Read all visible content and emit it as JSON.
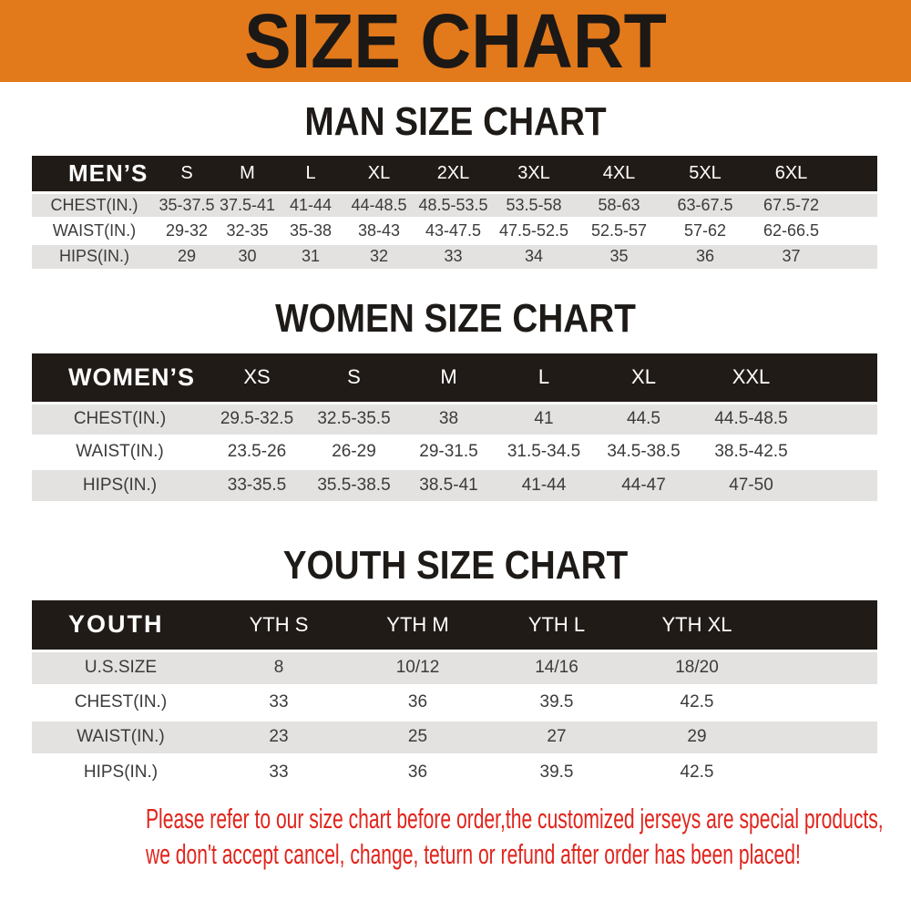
{
  "banner": {
    "title": "SIZE CHART"
  },
  "sections": [
    {
      "heading": "MAN SIZE CHART",
      "table": {
        "header_label": "MEN’S",
        "sizes": [
          "S",
          "M",
          "L",
          "XL",
          "2XL",
          "3XL",
          "4XL",
          "5XL",
          "6XL"
        ],
        "rows": [
          {
            "label": "CHEST(IN.)",
            "values": [
              "35-37.5",
              "37.5-41",
              "41-44",
              "44-48.5",
              "48.5-53.5",
              "53.5-58",
              "58-63",
              "63-67.5",
              "67.5-72"
            ]
          },
          {
            "label": "WAIST(IN.)",
            "values": [
              "29-32",
              "32-35",
              "35-38",
              "38-43",
              "43-47.5",
              "47.5-52.5",
              "52.5-57",
              "57-62",
              "62-66.5"
            ]
          },
          {
            "label": "HIPS(IN.)",
            "values": [
              "29",
              "30",
              "31",
              "32",
              "33",
              "34",
              "35",
              "36",
              "37"
            ]
          }
        ]
      }
    },
    {
      "heading": "WOMEN SIZE CHART",
      "table": {
        "header_label": "WOMEN’S",
        "sizes": [
          "XS",
          "S",
          "M",
          "L",
          "XL",
          "XXL"
        ],
        "rows": [
          {
            "label": "CHEST(IN.)",
            "values": [
              "29.5-32.5",
              "32.5-35.5",
              "38",
              "41",
              "44.5",
              "44.5-48.5"
            ]
          },
          {
            "label": "WAIST(IN.)",
            "values": [
              "23.5-26",
              "26-29",
              "29-31.5",
              "31.5-34.5",
              "34.5-38.5",
              "38.5-42.5"
            ]
          },
          {
            "label": "HIPS(IN.)",
            "values": [
              "33-35.5",
              "35.5-38.5",
              "38.5-41",
              "41-44",
              "44-47",
              "47-50"
            ]
          }
        ]
      }
    },
    {
      "heading": "YOUTH SIZE CHART",
      "table": {
        "header_label": "YOUTH",
        "sizes": [
          "YTH S",
          "YTH M",
          "YTH L",
          "YTH XL"
        ],
        "rows": [
          {
            "label": "U.S.SIZE",
            "values": [
              "8",
              "10/12",
              "14/16",
              "18/20"
            ]
          },
          {
            "label": "CHEST(IN.)",
            "values": [
              "33",
              "36",
              "39.5",
              "42.5"
            ]
          },
          {
            "label": "WAIST(IN.)",
            "values": [
              "23",
              "25",
              "27",
              "29"
            ]
          },
          {
            "label": "HIPS(IN.)",
            "values": [
              "33",
              "36",
              "39.5",
              "42.5"
            ]
          }
        ]
      }
    }
  ],
  "footer": {
    "line1": "Please refer to our size chart before order,the customized jerseys are special products,",
    "line2": "we don't accept cancel, change, teturn or refund after order has been placed!"
  },
  "colors": {
    "banner_bg": "#e2791b",
    "table_header_bg": "#211b17",
    "stripe_gray": "#e3e2e0",
    "notice_red": "#e0241c"
  }
}
